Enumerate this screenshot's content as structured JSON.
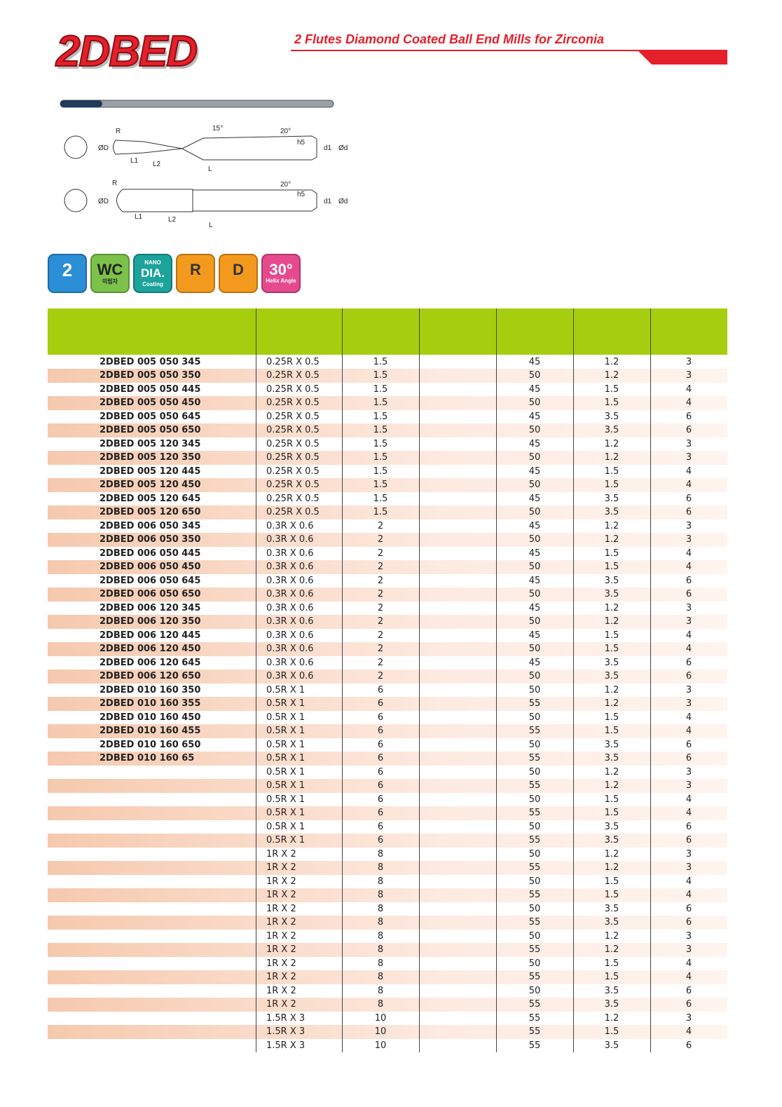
{
  "header": {
    "logo": "2DBED",
    "title": "2 Flutes Diamond Coated Ball End Mills for Zirconia"
  },
  "drawing": {
    "top": [
      "R",
      "15°",
      "20°",
      "h5",
      "ØD",
      "L1",
      "L2",
      "L",
      "d1",
      "Ød"
    ],
    "bottom": [
      "R",
      "20°",
      "h5",
      "ØD",
      "L1",
      "L2",
      "L",
      "d1",
      "Ød"
    ]
  },
  "icons": [
    {
      "main": "2"
    },
    {
      "main": "WC",
      "sub": "미립자"
    },
    {
      "top": "NANO",
      "main": "DIA.",
      "sub": "Coating"
    },
    {
      "main": "R"
    },
    {
      "main": "D"
    },
    {
      "main": "30°",
      "sub": "Helix Angle"
    }
  ],
  "table": {
    "rows": [
      [
        "2DBED 005 050 345",
        "0.25R X 0.5",
        1.5,
        45,
        1.2,
        3
      ],
      [
        "2DBED 005 050 350",
        "0.25R X 0.5",
        1.5,
        50,
        1.2,
        3
      ],
      [
        "2DBED 005 050 445",
        "0.25R X 0.5",
        1.5,
        45,
        1.5,
        4
      ],
      [
        "2DBED 005 050 450",
        "0.25R X 0.5",
        1.5,
        50,
        1.5,
        4
      ],
      [
        "2DBED 005 050 645",
        "0.25R X 0.5",
        1.5,
        45,
        3.5,
        6
      ],
      [
        "2DBED 005 050 650",
        "0.25R X 0.5",
        1.5,
        50,
        3.5,
        6
      ],
      [
        "2DBED 005 120 345",
        "0.25R X 0.5",
        1.5,
        45,
        1.2,
        3
      ],
      [
        "2DBED 005 120 350",
        "0.25R X 0.5",
        1.5,
        50,
        1.2,
        3
      ],
      [
        "2DBED 005 120 445",
        "0.25R X 0.5",
        1.5,
        45,
        1.5,
        4
      ],
      [
        "2DBED 005 120 450",
        "0.25R X 0.5",
        1.5,
        50,
        1.5,
        4
      ],
      [
        "2DBED 005 120 645",
        "0.25R X 0.5",
        1.5,
        45,
        3.5,
        6
      ],
      [
        "2DBED 005 120 650",
        "0.25R X 0.5",
        1.5,
        50,
        3.5,
        6
      ],
      [
        "2DBED 006 050 345",
        "0.3R X 0.6",
        2,
        45,
        1.2,
        3
      ],
      [
        "2DBED 006 050 350",
        "0.3R X 0.6",
        2,
        50,
        1.2,
        3
      ],
      [
        "2DBED 006 050 445",
        "0.3R X 0.6",
        2,
        45,
        1.5,
        4
      ],
      [
        "2DBED 006 050 450",
        "0.3R X 0.6",
        2,
        50,
        1.5,
        4
      ],
      [
        "2DBED 006 050 645",
        "0.3R X 0.6",
        2,
        45,
        3.5,
        6
      ],
      [
        "2DBED 006 050 650",
        "0.3R X 0.6",
        2,
        50,
        3.5,
        6
      ],
      [
        "2DBED 006 120 345",
        "0.3R X 0.6",
        2,
        45,
        1.2,
        3
      ],
      [
        "2DBED 006 120 350",
        "0.3R X 0.6",
        2,
        50,
        1.2,
        3
      ],
      [
        "2DBED 006 120 445",
        "0.3R X 0.6",
        2,
        45,
        1.5,
        4
      ],
      [
        "2DBED 006 120 450",
        "0.3R X 0.6",
        2,
        50,
        1.5,
        4
      ],
      [
        "2DBED 006 120 645",
        "0.3R X 0.6",
        2,
        45,
        3.5,
        6
      ],
      [
        "2DBED 006 120 650",
        "0.3R X 0.6",
        2,
        50,
        3.5,
        6
      ],
      [
        "2DBED 010 160 350",
        "0.5R X 1",
        6,
        50,
        1.2,
        3
      ],
      [
        "2DBED 010 160 355",
        "0.5R X 1",
        6,
        55,
        1.2,
        3
      ],
      [
        "2DBED 010 160 450",
        "0.5R X 1",
        6,
        50,
        1.5,
        4
      ],
      [
        "2DBED 010 160 455",
        "0.5R X 1",
        6,
        55,
        1.5,
        4
      ],
      [
        "2DBED 010 160 650",
        "0.5R X 1",
        6,
        50,
        3.5,
        6
      ],
      [
        "2DBED 010 160 65",
        "0.5R X 1",
        6,
        55,
        3.5,
        6
      ],
      [
        null,
        "0.5R X 1",
        6,
        50,
        1.2,
        3
      ],
      [
        null,
        "0.5R X 1",
        6,
        55,
        1.2,
        3
      ],
      [
        null,
        "0.5R X 1",
        6,
        50,
        1.5,
        4
      ],
      [
        null,
        "0.5R X 1",
        6,
        55,
        1.5,
        4
      ],
      [
        null,
        "0.5R X 1",
        6,
        50,
        3.5,
        6
      ],
      [
        null,
        "0.5R X 1",
        6,
        55,
        3.5,
        6
      ],
      [
        null,
        "1R X 2",
        8,
        50,
        1.2,
        3
      ],
      [
        null,
        "1R X 2",
        8,
        55,
        1.2,
        3
      ],
      [
        null,
        "1R X 2",
        8,
        50,
        1.5,
        4
      ],
      [
        null,
        "1R X 2",
        8,
        55,
        1.5,
        4
      ],
      [
        null,
        "1R X 2",
        8,
        50,
        3.5,
        6
      ],
      [
        null,
        "1R X 2",
        8,
        55,
        3.5,
        6
      ],
      [
        null,
        "1R X 2",
        8,
        50,
        1.2,
        3
      ],
      [
        null,
        "1R X 2",
        8,
        55,
        1.2,
        3
      ],
      [
        null,
        "1R X 2",
        8,
        50,
        1.5,
        4
      ],
      [
        null,
        "1R X 2",
        8,
        55,
        1.5,
        4
      ],
      [
        null,
        "1R X 2",
        8,
        50,
        3.5,
        6
      ],
      [
        null,
        "1R X 2",
        8,
        55,
        3.5,
        6
      ],
      [
        null,
        "1.5R X 3",
        10,
        55,
        1.2,
        3
      ],
      [
        null,
        "1.5R X 3",
        10,
        55,
        1.5,
        4
      ],
      [
        null,
        "1.5R X 3",
        10,
        55,
        3.5,
        6
      ]
    ]
  }
}
